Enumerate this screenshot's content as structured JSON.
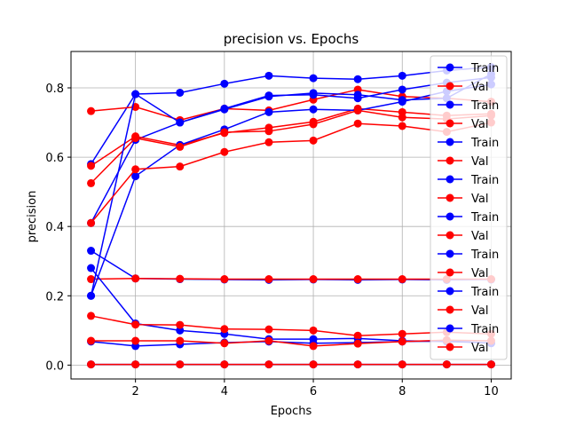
{
  "chart_data": {
    "type": "line",
    "title": "precision vs. Epochs",
    "xlabel": "Epochs",
    "ylabel": "precision",
    "x": [
      1,
      2,
      3,
      4,
      5,
      6,
      7,
      8,
      9,
      10
    ],
    "xlim": [
      0.55,
      10.45
    ],
    "ylim": [
      -0.04,
      0.905
    ],
    "xticks": [
      2,
      4,
      6,
      8,
      10
    ],
    "yticks": [
      0.0,
      0.2,
      0.4,
      0.6,
      0.8
    ],
    "ytick_labels": [
      "0.0",
      "0.2",
      "0.4",
      "0.6",
      "0.8"
    ],
    "grid": true,
    "legend_position": "top-right",
    "colors": {
      "train": "#0000ff",
      "val": "#ff0000"
    },
    "series": [
      {
        "name": "Train",
        "color": "#0000ff",
        "values": [
          0.58,
          0.782,
          0.786,
          0.812,
          0.835,
          0.828,
          0.825,
          0.835,
          0.85,
          0.86
        ]
      },
      {
        "name": "Val",
        "color": "#ff0000",
        "values": [
          0.733,
          0.745,
          0.707,
          0.74,
          0.735,
          0.766,
          0.795,
          0.775,
          0.77,
          0.76
        ]
      },
      {
        "name": "Train",
        "color": "#0000ff",
        "values": [
          0.41,
          0.65,
          0.7,
          0.74,
          0.778,
          0.78,
          0.77,
          0.795,
          0.815,
          0.83
        ]
      },
      {
        "name": "Val",
        "color": "#ff0000",
        "values": [
          0.575,
          0.66,
          0.635,
          0.67,
          0.685,
          0.702,
          0.74,
          0.73,
          0.72,
          0.725
        ]
      },
      {
        "name": "Train",
        "color": "#0000ff",
        "values": [
          0.33,
          0.25,
          0.248,
          0.247,
          0.246,
          0.247,
          0.246,
          0.247,
          0.246,
          0.247
        ]
      },
      {
        "name": "Val",
        "color": "#ff0000",
        "values": [
          0.248,
          0.25,
          0.249,
          0.248,
          0.248,
          0.248,
          0.248,
          0.248,
          0.248,
          0.248
        ]
      },
      {
        "name": "Train",
        "color": "#0000ff",
        "values": [
          0.2,
          0.545,
          0.635,
          0.68,
          0.73,
          0.738,
          0.735,
          0.76,
          0.79,
          0.81
        ]
      },
      {
        "name": "Val",
        "color": "#ff0000",
        "values": [
          0.525,
          0.655,
          0.63,
          0.672,
          0.675,
          0.695,
          0.735,
          0.715,
          0.71,
          0.72
        ]
      },
      {
        "name": "Train",
        "color": "#0000ff",
        "values": [
          0.28,
          0.12,
          0.1,
          0.09,
          0.075,
          0.075,
          0.077,
          0.07,
          0.068,
          0.064
        ]
      },
      {
        "name": "Val",
        "color": "#ff0000",
        "values": [
          0.142,
          0.117,
          0.116,
          0.104,
          0.103,
          0.1,
          0.085,
          0.09,
          0.095,
          0.09
        ]
      },
      {
        "name": "Train",
        "color": "#0000ff",
        "values": [
          0.068,
          0.055,
          0.06,
          0.065,
          0.068,
          0.063,
          0.065,
          0.068,
          0.07,
          0.063
        ]
      },
      {
        "name": "Val",
        "color": "#ff0000",
        "values": [
          0.07,
          0.07,
          0.07,
          0.063,
          0.07,
          0.055,
          0.062,
          0.068,
          0.072,
          0.07
        ]
      },
      {
        "name": "Train",
        "color": "#0000ff",
        "values": [
          0.002,
          0.002,
          0.002,
          0.002,
          0.002,
          0.002,
          0.002,
          0.002,
          0.002,
          0.002
        ]
      },
      {
        "name": "Val",
        "color": "#ff0000",
        "values": [
          0.002,
          0.002,
          0.002,
          0.002,
          0.002,
          0.002,
          0.002,
          0.002,
          0.002,
          0.002
        ]
      },
      {
        "name": "Train",
        "color": "#0000ff",
        "values": [
          0.2,
          0.782,
          0.7,
          0.738,
          0.775,
          0.785,
          0.78,
          0.765,
          0.77,
          0.84
        ]
      },
      {
        "name": "Val",
        "color": "#ff0000",
        "values": [
          0.41,
          0.565,
          0.573,
          0.615,
          0.643,
          0.648,
          0.697,
          0.69,
          0.673,
          0.7
        ]
      }
    ]
  }
}
